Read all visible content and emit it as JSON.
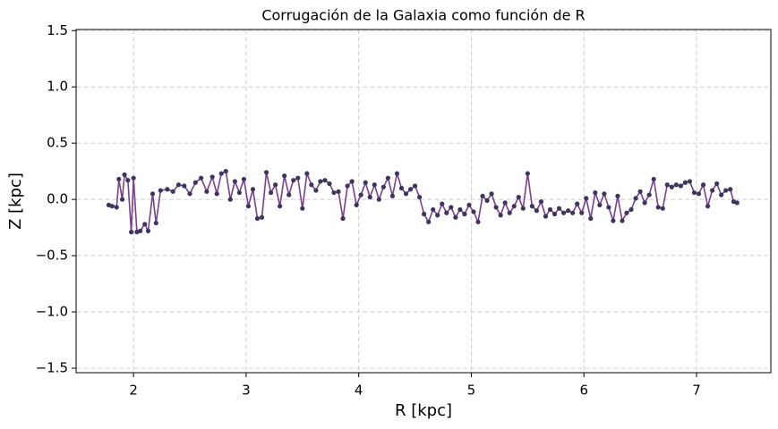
{
  "chart_data": {
    "type": "line",
    "title": "Corrugación de la Galaxia como función de R",
    "x_label": "R [kpc]",
    "y_label": "Z [kpc]",
    "line_color": "#7b3f8c",
    "marker_color": "#3b3560",
    "x": [
      1.78,
      1.81,
      1.85,
      1.87,
      1.9,
      1.92,
      1.95,
      1.98,
      2.0,
      2.03,
      2.06,
      2.1,
      2.13,
      2.17,
      2.2,
      2.24,
      2.3,
      2.35,
      2.4,
      2.45,
      2.5,
      2.55,
      2.6,
      2.65,
      2.7,
      2.74,
      2.78,
      2.82,
      2.86,
      2.9,
      2.94,
      2.98,
      3.02,
      3.06,
      3.1,
      3.14,
      3.18,
      3.22,
      3.26,
      3.3,
      3.34,
      3.38,
      3.42,
      3.46,
      3.5,
      3.54,
      3.58,
      3.62,
      3.66,
      3.7,
      3.74,
      3.78,
      3.82,
      3.86,
      3.9,
      3.94,
      3.98,
      4.02,
      4.06,
      4.1,
      4.14,
      4.18,
      4.22,
      4.26,
      4.3,
      4.34,
      4.38,
      4.42,
      4.46,
      4.5,
      4.54,
      4.58,
      4.62,
      4.66,
      4.7,
      4.74,
      4.78,
      4.82,
      4.86,
      4.9,
      4.94,
      4.98,
      5.02,
      5.06,
      5.1,
      5.14,
      5.18,
      5.22,
      5.26,
      5.3,
      5.34,
      5.38,
      5.42,
      5.46,
      5.5,
      5.54,
      5.58,
      5.62,
      5.66,
      5.7,
      5.74,
      5.78,
      5.82,
      5.86,
      5.9,
      5.94,
      5.98,
      6.02,
      6.06,
      6.1,
      6.14,
      6.18,
      6.22,
      6.26,
      6.3,
      6.34,
      6.38,
      6.42,
      6.46,
      6.5,
      6.54,
      6.58,
      6.62,
      6.66,
      6.7,
      6.74,
      6.78,
      6.82,
      6.86,
      6.9,
      6.94,
      6.98,
      7.02,
      7.06,
      7.1,
      7.14,
      7.18,
      7.22,
      7.26,
      7.3,
      7.33,
      7.36
    ],
    "values": [
      -0.05,
      -0.06,
      -0.07,
      0.18,
      0.0,
      0.22,
      0.17,
      -0.29,
      0.19,
      -0.29,
      -0.28,
      -0.22,
      -0.28,
      0.05,
      -0.21,
      0.08,
      0.09,
      0.07,
      0.13,
      0.12,
      0.05,
      0.15,
      0.19,
      0.07,
      0.2,
      0.05,
      0.23,
      0.25,
      0.0,
      0.16,
      0.06,
      0.18,
      -0.06,
      0.09,
      -0.17,
      -0.16,
      0.24,
      0.06,
      0.13,
      -0.06,
      0.21,
      0.04,
      0.17,
      0.19,
      -0.08,
      0.23,
      0.13,
      0.08,
      0.16,
      0.17,
      0.14,
      0.06,
      0.07,
      -0.17,
      0.12,
      0.16,
      -0.05,
      0.04,
      0.15,
      0.02,
      0.13,
      0.0,
      0.11,
      0.19,
      0.03,
      0.23,
      0.1,
      0.05,
      0.09,
      0.12,
      0.02,
      -0.13,
      -0.2,
      -0.09,
      -0.14,
      -0.04,
      -0.12,
      -0.07,
      -0.16,
      -0.09,
      -0.13,
      -0.05,
      -0.11,
      -0.2,
      0.03,
      -0.01,
      0.05,
      -0.07,
      -0.14,
      -0.03,
      -0.12,
      -0.06,
      0.02,
      -0.08,
      0.23,
      -0.06,
      -0.1,
      -0.02,
      -0.15,
      -0.09,
      -0.13,
      -0.08,
      -0.12,
      -0.1,
      -0.12,
      -0.04,
      -0.12,
      0.01,
      -0.17,
      0.06,
      -0.05,
      0.05,
      -0.07,
      -0.19,
      0.03,
      -0.19,
      -0.12,
      -0.09,
      0.01,
      0.07,
      -0.03,
      0.04,
      0.18,
      -0.07,
      -0.08,
      0.13,
      0.11,
      0.13,
      0.12,
      0.15,
      0.16,
      0.06,
      0.05,
      0.13,
      -0.06,
      0.08,
      0.14,
      0.04,
      0.08,
      0.09,
      -0.02,
      -0.03
    ],
    "xlim": [
      1.49,
      7.66
    ],
    "xticks": [
      2,
      3,
      4,
      5,
      6,
      7
    ],
    "ylim": [
      -1.54,
      1.51
    ],
    "yticks": [
      {
        "value": -1.5,
        "label": "−1.5"
      },
      {
        "value": -1,
        "label": "−1.0"
      },
      {
        "value": -0.5,
        "label": "−0.5"
      },
      {
        "value": 0,
        "label": "0.0"
      },
      0.5,
      {
        "value": 1,
        "label": "1.0"
      },
      1.5
    ],
    "grid": true
  }
}
